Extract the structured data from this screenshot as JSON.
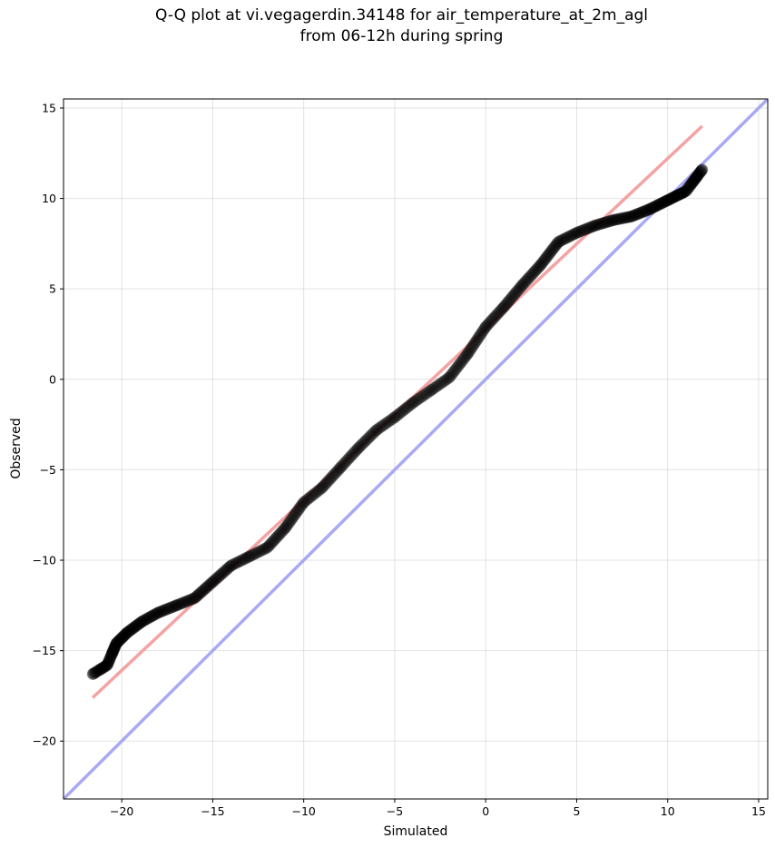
{
  "chart_data": {
    "type": "scatter",
    "title": "Q-Q plot at vi.vegagerdin.34148 for air_temperature_at_2m_agl",
    "subtitle": "from 06-12h during spring",
    "xlabel": "Simulated",
    "ylabel": "Observed",
    "xlim": [
      -23.2,
      15.5
    ],
    "ylim": [
      -23.2,
      15.5
    ],
    "grid": true,
    "x_ticks": [
      -20,
      -15,
      -10,
      -5,
      0,
      5,
      10,
      15
    ],
    "y_ticks": [
      -20,
      -15,
      -10,
      -5,
      0,
      5,
      10,
      15
    ],
    "x_tick_labels": [
      "−20",
      "−15",
      "−10",
      "−5",
      "0",
      "5",
      "10",
      "15"
    ],
    "y_tick_labels": [
      "−20",
      "−15",
      "−10",
      "−5",
      "0",
      "5",
      "10",
      "15"
    ],
    "colors": {
      "points": "#000000",
      "fit_line": "#f4a3a3",
      "identity_line": "#a9a9f4"
    },
    "fit_line": {
      "x": [
        -21.6,
        11.9
      ],
      "y": [
        -17.6,
        14.0
      ]
    },
    "identity_line": {
      "x": [
        -23.2,
        15.5
      ],
      "y": [
        -23.2,
        15.5
      ]
    },
    "qq_curve": {
      "x": [
        -21.6,
        -20.8,
        -20.3,
        -19.7,
        -18.9,
        -18.0,
        -17.0,
        -16.0,
        -15.0,
        -14.0,
        -13.0,
        -12.0,
        -11.0,
        -10.0,
        -9.0,
        -8.0,
        -7.0,
        -6.0,
        -5.0,
        -4.0,
        -3.0,
        -2.0,
        -1.0,
        0.0,
        1.0,
        2.0,
        3.0,
        4.0,
        5.0,
        6.0,
        7.0,
        8.0,
        9.0,
        10.0,
        11.0,
        11.9
      ],
      "y": [
        -16.3,
        -15.8,
        -14.6,
        -14.0,
        -13.4,
        -12.9,
        -12.5,
        -12.1,
        -11.2,
        -10.3,
        -9.8,
        -9.3,
        -8.2,
        -6.8,
        -6.0,
        -4.9,
        -3.8,
        -2.8,
        -2.1,
        -1.3,
        -0.6,
        0.1,
        1.4,
        2.9,
        4.0,
        5.2,
        6.3,
        7.6,
        8.1,
        8.5,
        8.8,
        9.0,
        9.4,
        9.9,
        10.4,
        11.6
      ]
    }
  }
}
